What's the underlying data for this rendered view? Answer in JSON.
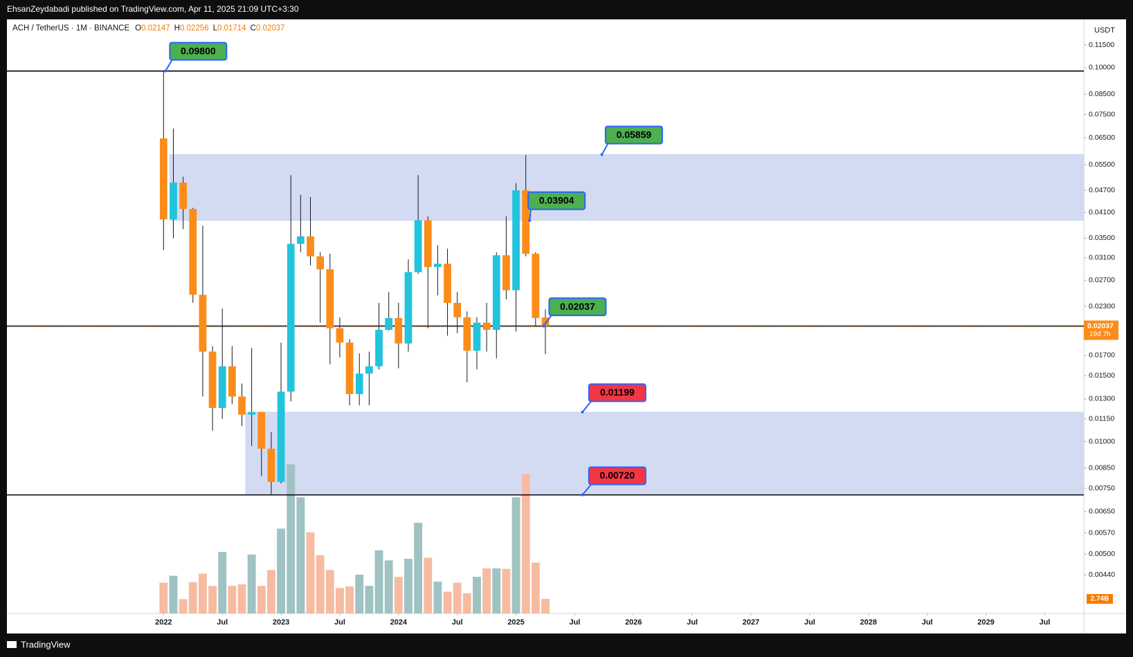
{
  "header": "EhsanZeydabadi published on TradingView.com, Apr 11, 2025 21:09 UTC+3:30",
  "footer": "TradingView",
  "chart_data": {
    "type": "candlestick",
    "symbol": "ACH / TetherUS · 1M · BINANCE",
    "ohlc": [
      {
        "key": "O",
        "value": 0.02147
      },
      {
        "key": "H",
        "value": 0.02256
      },
      {
        "key": "L",
        "value": 0.01714
      },
      {
        "key": "C",
        "value": 0.02037
      }
    ],
    "currency": "USDT",
    "log_scale": true,
    "grid": false,
    "up_color": "#22c3dc",
    "down_color": "#fb8c1a",
    "x": [
      "2022-01",
      "2022-02",
      "2022-03",
      "2022-04",
      "2022-05",
      "2022-06",
      "2022-07",
      "2022-08",
      "2022-09",
      "2022-10",
      "2022-11",
      "2022-12",
      "2023-01",
      "2023-02",
      "2023-03",
      "2023-04",
      "2023-05",
      "2023-06",
      "2023-07",
      "2023-08",
      "2023-09",
      "2023-10",
      "2023-11",
      "2023-12",
      "2024-01",
      "2024-02",
      "2024-03",
      "2024-04",
      "2024-05",
      "2024-06",
      "2024-07",
      "2024-08",
      "2024-09",
      "2024-10",
      "2024-11",
      "2024-12",
      "2025-01",
      "2025-02",
      "2025-03",
      "2025-04"
    ],
    "open": [
      0.0647,
      0.0393,
      0.0493,
      0.0419,
      0.0247,
      0.0174,
      0.0123,
      0.0159,
      0.0132,
      0.0118,
      0.012,
      0.00957,
      0.0078,
      0.0136,
      0.0338,
      0.0354,
      0.0313,
      0.0289,
      0.0201,
      0.0184,
      0.0134,
      0.0152,
      0.0159,
      0.0199,
      0.0214,
      0.0183,
      0.0284,
      0.0391,
      0.0293,
      0.0299,
      0.0235,
      0.0215,
      0.0175,
      0.0208,
      0.0199,
      0.0315,
      0.0254,
      0.047,
      0.0318,
      0.02147
    ],
    "high": [
      0.098,
      0.0688,
      0.0511,
      0.0422,
      0.0378,
      0.018,
      0.0227,
      0.018,
      0.0143,
      0.0178,
      0.012,
      0.0106,
      0.0184,
      0.0516,
      0.0457,
      0.0451,
      0.0321,
      0.0318,
      0.0215,
      0.0188,
      0.0172,
      0.0174,
      0.0235,
      0.0251,
      0.0235,
      0.0307,
      0.0516,
      0.04,
      0.0335,
      0.0328,
      0.0251,
      0.0223,
      0.0215,
      0.0235,
      0.0321,
      0.04,
      0.0491,
      0.0584,
      0.0321,
      0.02256
    ],
    "low": [
      0.0325,
      0.035,
      0.037,
      0.0235,
      0.0132,
      0.0107,
      0.0115,
      0.0126,
      0.011,
      0.00974,
      0.00808,
      0.00723,
      0.00773,
      0.0128,
      0.0321,
      0.0296,
      0.0208,
      0.0161,
      0.0168,
      0.0125,
      0.0125,
      0.0125,
      0.0156,
      0.0198,
      0.0157,
      0.0174,
      0.0281,
      0.0201,
      0.0246,
      0.0192,
      0.0195,
      0.0144,
      0.0156,
      0.0174,
      0.0167,
      0.024,
      0.0197,
      0.0313,
      0.0204,
      0.01714
    ],
    "close": [
      0.0393,
      0.0493,
      0.0419,
      0.0247,
      0.0174,
      0.0123,
      0.0159,
      0.0132,
      0.0118,
      0.012,
      0.00957,
      0.0078,
      0.0136,
      0.0338,
      0.0354,
      0.0313,
      0.0289,
      0.0201,
      0.0184,
      0.0134,
      0.0152,
      0.0159,
      0.0199,
      0.0214,
      0.0183,
      0.0284,
      0.0391,
      0.0293,
      0.0299,
      0.0235,
      0.0215,
      0.0175,
      0.0208,
      0.0199,
      0.0315,
      0.0254,
      0.047,
      0.0318,
      0.0214,
      0.02037
    ],
    "ylim": [
      0.00347,
      0.1347
    ],
    "yticks": [
      {
        "value": 0.115,
        "label": "0.11500"
      },
      {
        "value": 0.1,
        "label": "0.10000"
      },
      {
        "value": 0.085,
        "label": "0.08500"
      },
      {
        "value": 0.075,
        "label": "0.07500"
      },
      {
        "value": 0.065,
        "label": "0.06500"
      },
      {
        "value": 0.055,
        "label": "0.05500"
      },
      {
        "value": 0.047,
        "label": "0.04700"
      },
      {
        "value": 0.041,
        "label": "0.04100"
      },
      {
        "value": 0.035,
        "label": "0.03500"
      },
      {
        "value": 0.031,
        "label": "0.03100"
      },
      {
        "value": 0.027,
        "label": "0.02700"
      },
      {
        "value": 0.023,
        "label": "0.02300"
      },
      {
        "value": 0.017,
        "label": "0.01700"
      },
      {
        "value": 0.015,
        "label": "0.01500"
      },
      {
        "value": 0.013,
        "label": "0.01300"
      },
      {
        "value": 0.0115,
        "label": "0.01150"
      },
      {
        "value": 0.01,
        "label": "0.01000"
      },
      {
        "value": 0.0085,
        "label": "0.00850"
      },
      {
        "value": 0.0075,
        "label": "0.00750"
      },
      {
        "value": 0.0065,
        "label": "0.00650"
      },
      {
        "value": 0.0057,
        "label": "0.00570"
      },
      {
        "value": 0.005,
        "label": "0.00500"
      },
      {
        "value": 0.0044,
        "label": "0.00440"
      }
    ],
    "xlim": [
      "2020-09",
      "2029-11"
    ],
    "xticks": [
      {
        "value": "2022-01",
        "label": "2022"
      },
      {
        "value": "2022-07",
        "label": "Jul"
      },
      {
        "value": "2023-01",
        "label": "2023"
      },
      {
        "value": "2023-07",
        "label": "Jul"
      },
      {
        "value": "2024-01",
        "label": "2024"
      },
      {
        "value": "2024-07",
        "label": "Jul"
      },
      {
        "value": "2025-01",
        "label": "2025"
      },
      {
        "value": "2025-07",
        "label": "Jul"
      },
      {
        "value": "2026-01",
        "label": "2026"
      },
      {
        "value": "2026-07",
        "label": "Jul"
      },
      {
        "value": "2027-01",
        "label": "2027"
      },
      {
        "value": "2027-07",
        "label": "Jul"
      },
      {
        "value": "2028-01",
        "label": "2028"
      },
      {
        "value": "2028-07",
        "label": "Jul"
      },
      {
        "value": "2029-01",
        "label": "2029"
      },
      {
        "value": "2029-07",
        "label": "Jul"
      }
    ],
    "volume": {
      "values": [
        5.8,
        7.1,
        2.7,
        5.9,
        7.5,
        5.2,
        11.6,
        5.2,
        5.5,
        11.1,
        5.2,
        8.2,
        16.0,
        28.1,
        21.9,
        15.3,
        11.0,
        8.2,
        4.8,
        5.1,
        7.3,
        5.2,
        11.9,
        10.0,
        6.9,
        10.3,
        17.1,
        10.5,
        6.0,
        4.1,
        5.8,
        3.8,
        6.9,
        8.5,
        8.5,
        8.4,
        21.9,
        26.3,
        9.6,
        2.74
      ],
      "ylim": [
        0,
        30
      ],
      "up_color": "#9fc2c3",
      "down_color": "#f7bba2",
      "last_label": "2.74B"
    },
    "levels": [
      0.098,
      0.0072
    ],
    "zones": [
      {
        "from": 0.03904,
        "to": 0.05859
      },
      {
        "from": 0.0072,
        "to": 0.01199
      }
    ],
    "zone_color": "#d3dbf3",
    "annotations": [
      {
        "value": 0.098,
        "label": "0.09800",
        "color": "#4caf50"
      },
      {
        "value": 0.05859,
        "label": "0.05859",
        "color": "#4caf50"
      },
      {
        "value": 0.03904,
        "label": "0.03904",
        "color": "#4caf50"
      },
      {
        "value": 0.02037,
        "label": "0.02037",
        "color": "#4caf50"
      },
      {
        "value": 0.01199,
        "label": "0.01199",
        "color": "#f23645"
      },
      {
        "value": 0.0072,
        "label": "0.00720",
        "color": "#f23645"
      }
    ],
    "price_tag": {
      "value": 0.02037,
      "countdown": "19d 7h"
    }
  }
}
